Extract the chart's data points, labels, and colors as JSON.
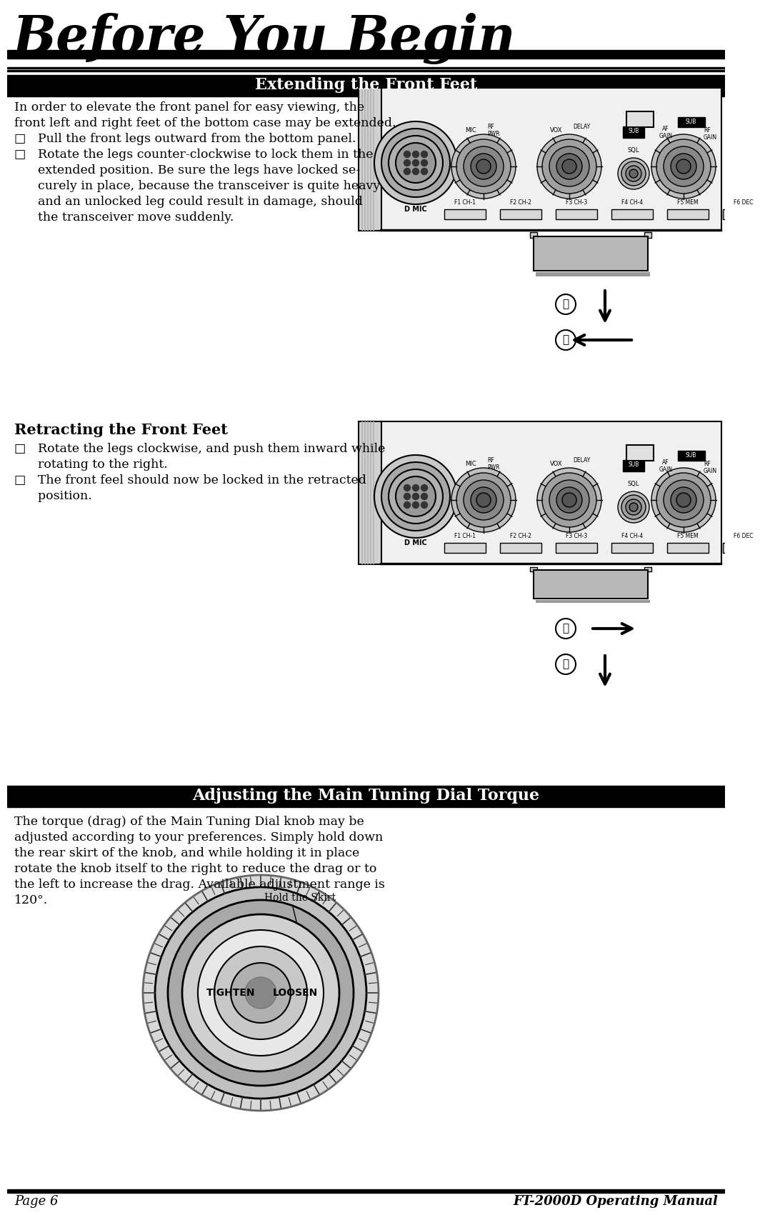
{
  "page_title": "Before You Begin",
  "section1_title": "Extending the Front Feet",
  "section2_title": "Adjusting the Main Tuning Dial Torque",
  "section1_body_line1": "In order to elevate the front panel for easy viewing, the",
  "section1_body_line2": "front left and right feet of the bottom case may be extended.",
  "section1_bullet1a": "□   Pull the front legs outward from the bottom panel.",
  "section1_bullet2a": "□   Rotate the legs counter-clockwise to lock them in the",
  "section1_bullet2b": "      extended position. Be sure the legs have locked se-",
  "section1_bullet2c": "      curely in place, because the transceiver is quite heavy",
  "section1_bullet2d": "      and an unlocked leg could result in damage, should",
  "section1_bullet2e": "      the transceiver move suddenly.",
  "retract_title": "Retracting the Front Feet",
  "retract_bullet1a": "□   Rotate the legs clockwise, and push them inward while",
  "retract_bullet1b": "      rotating to the right.",
  "retract_bullet2a": "□   The front feel should now be locked in the retracted",
  "retract_bullet2b": "      position.",
  "section2_body": [
    "The torque (drag) of the Main Tuning Dial knob may be",
    "adjusted according to your preferences. Simply hold down",
    "the rear skirt of the knob, and while holding it in place",
    "rotate the knob itself to the right to reduce the drag or to",
    "the left to increase the drag. Available adjustment range is",
    "120°."
  ],
  "hold_skirt_label": "Hold the Skirt",
  "tighten_label": "TIGHTEN",
  "loosen_label": "LOOSEN",
  "footer_left": "Page 6",
  "footer_right": "FT-2000D Operating Manual",
  "bg_color": "#ffffff",
  "text_color": "#000000"
}
